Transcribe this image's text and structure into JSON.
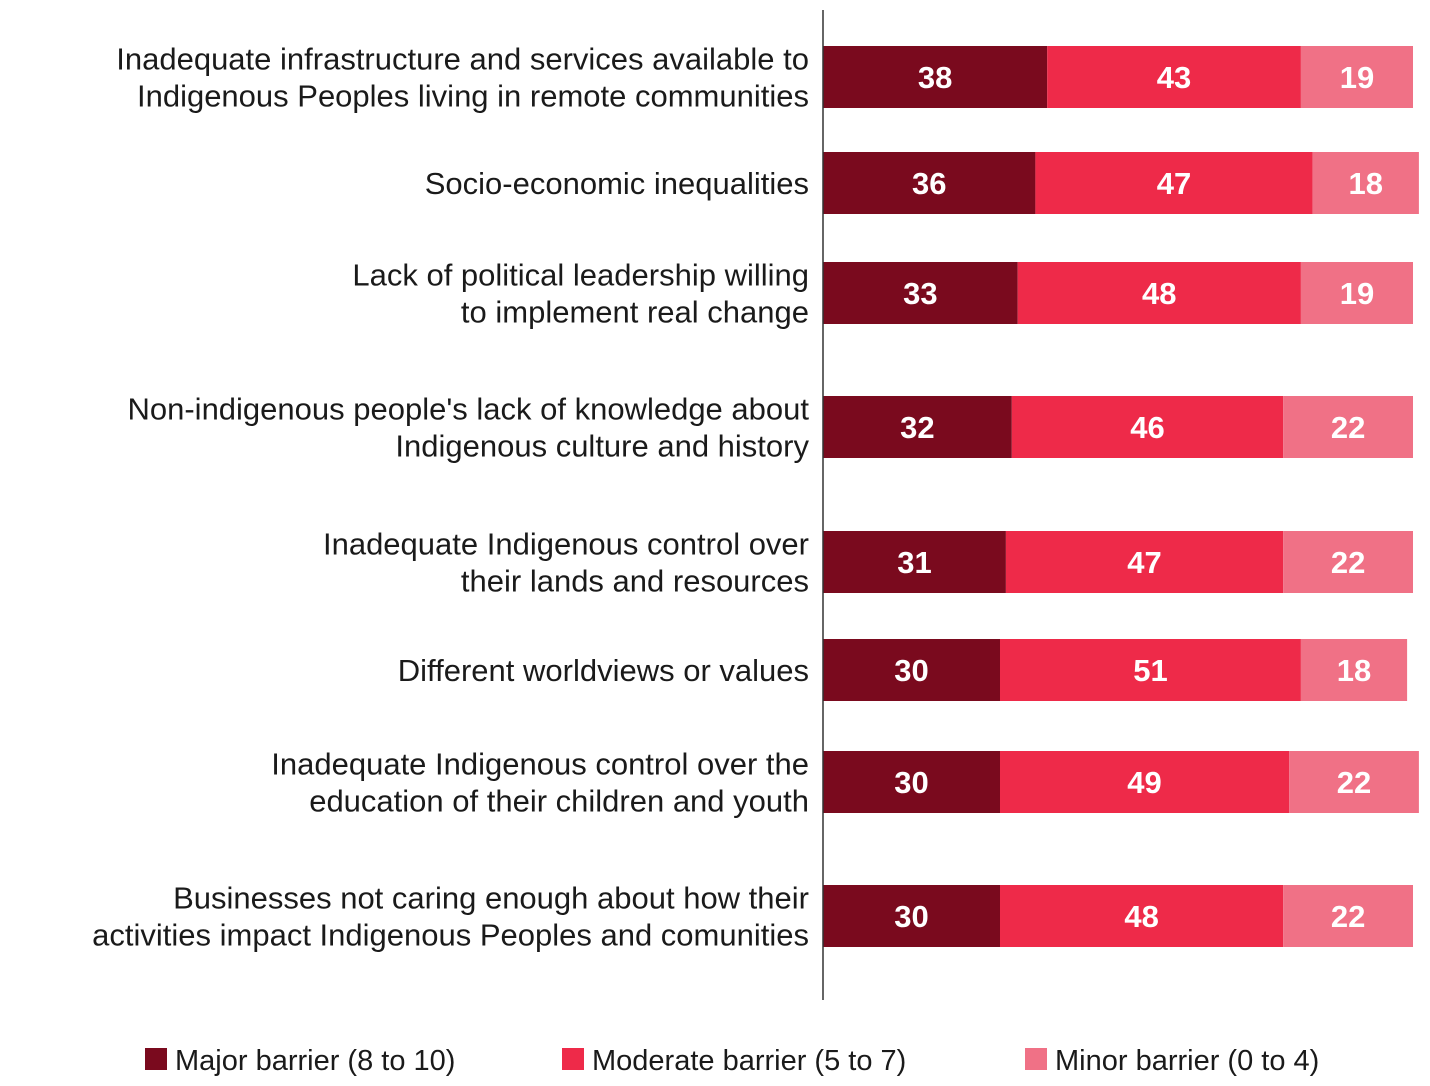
{
  "chart_data": {
    "type": "bar",
    "orientation": "horizontal",
    "stacked": true,
    "categories": [
      [
        "Inadequate infrastructure and services available to",
        "Indigenous Peoples living in remote communities"
      ],
      [
        "Socio-economic inequalities"
      ],
      [
        "Lack of political leadership willing",
        "to implement real change"
      ],
      [
        "Non-indigenous people's lack of knowledge about",
        "Indigenous culture and history"
      ],
      [
        "Inadequate Indigenous control over",
        "their lands and resources"
      ],
      [
        "Different worldviews or values"
      ],
      [
        "Inadequate Indigenous control over the",
        "education of their children and youth"
      ],
      [
        "Businesses not caring enough about how  their",
        "activities impact Indigenous Peoples and comunities"
      ]
    ],
    "series": [
      {
        "name": "Major barrier (8 to 10)",
        "color": "#7a0a1e",
        "values": [
          38,
          36,
          33,
          32,
          31,
          30,
          30,
          30
        ]
      },
      {
        "name": "Moderate barrier (5 to 7)",
        "color": "#ee2a49",
        "values": [
          43,
          47,
          48,
          46,
          47,
          51,
          49,
          48
        ]
      },
      {
        "name": "Minor barrier (0 to 4)",
        "color": "#f07186",
        "values": [
          19,
          18,
          19,
          22,
          22,
          18,
          22,
          22
        ]
      }
    ],
    "xlim": [
      0,
      100
    ],
    "grid": false,
    "legend_position": "bottom"
  }
}
